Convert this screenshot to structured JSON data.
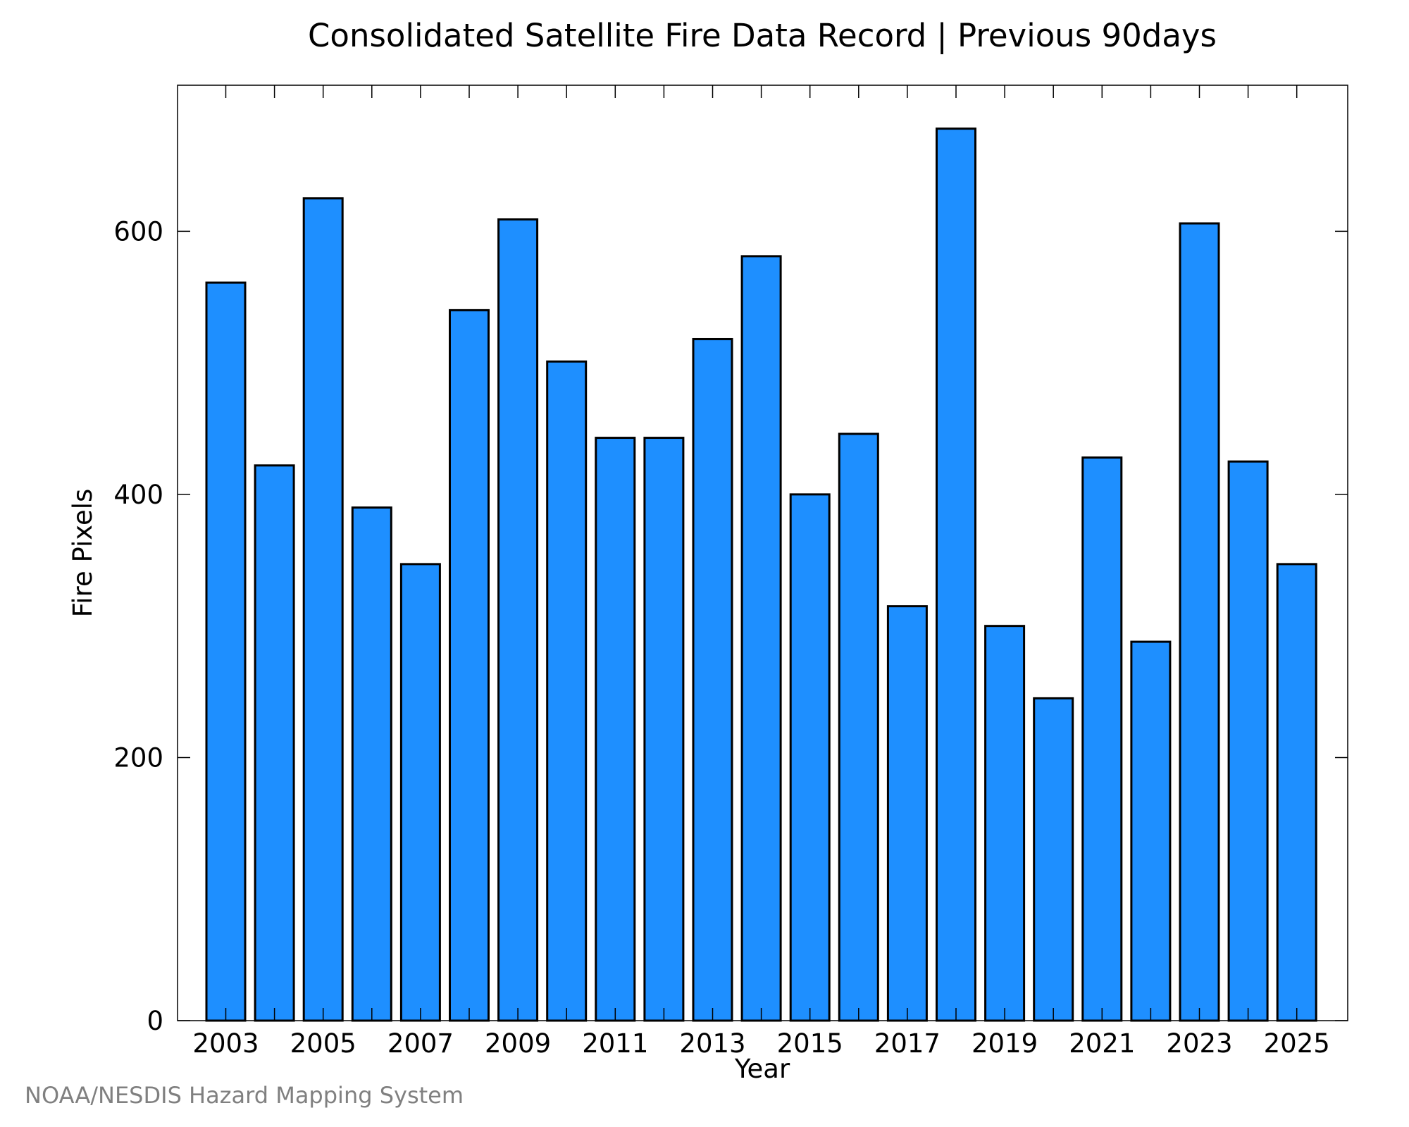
{
  "chart_data": {
    "type": "bar",
    "title": "Consolidated Satellite Fire Data Record | Previous 90days",
    "xlabel": "Year",
    "ylabel": "Fire Pixels",
    "categories": [
      "2003",
      "2004",
      "2005",
      "2006",
      "2007",
      "2008",
      "2009",
      "2010",
      "2011",
      "2012",
      "2013",
      "2014",
      "2015",
      "2016",
      "2017",
      "2018",
      "2019",
      "2020",
      "2021",
      "2022",
      "2023",
      "2024",
      "2025"
    ],
    "x_tick_labels": [
      "2003",
      "2005",
      "2007",
      "2009",
      "2011",
      "2013",
      "2015",
      "2017",
      "2019",
      "2021",
      "2023",
      "2025"
    ],
    "values": [
      561,
      422,
      625,
      390,
      347,
      540,
      609,
      501,
      443,
      443,
      518,
      581,
      400,
      446,
      315,
      678,
      300,
      245,
      428,
      288,
      606,
      425,
      347
    ],
    "ylim": [
      0,
      711
    ],
    "y_ticks": [
      0,
      200,
      400,
      600
    ],
    "bar_color": "#1E8FFF",
    "grid": false,
    "legend": "none"
  },
  "credit": "NOAA/NESDIS Hazard Mapping System"
}
